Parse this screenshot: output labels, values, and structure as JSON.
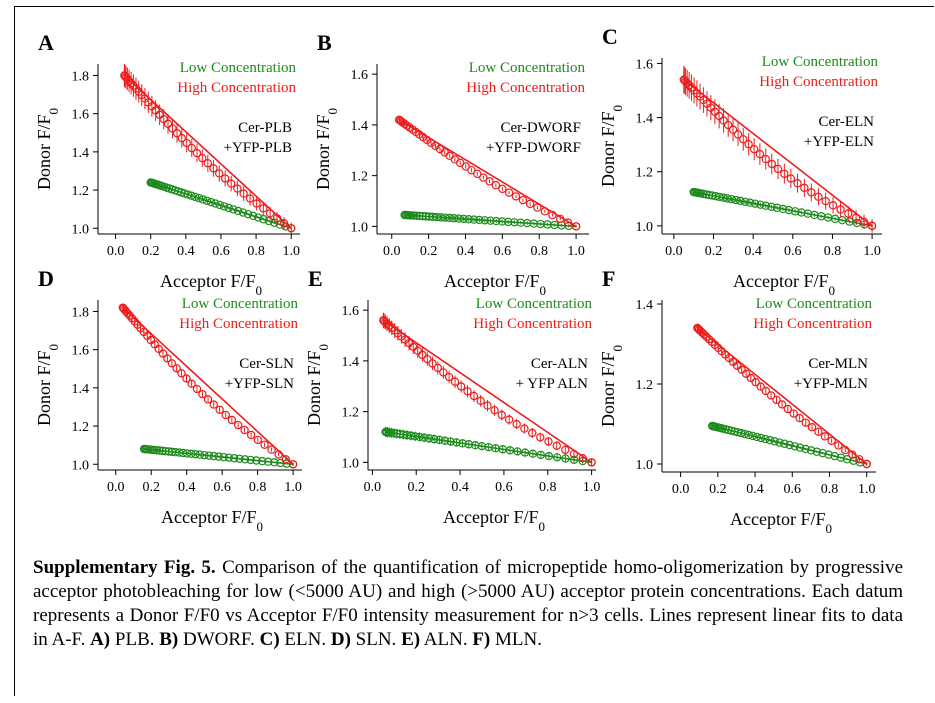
{
  "caption": {
    "label": "Supplementary Fig. 5.",
    "text": "Comparison of the quantification of micropeptide homo-oligomerization by progressive acceptor photobleaching for low (<5000 AU) and high (>5000 AU) acceptor protein concentrations. Each datum represents a Donor F/F0 vs Acceptor F/F0 intensity measurement for n>3 cells. Lines represent linear fits to data in A-F.",
    "parts": [
      {
        "key": "A)",
        "name": "PLB."
      },
      {
        "key": "B)",
        "name": "DWORF."
      },
      {
        "key": "C)",
        "name": "ELN."
      },
      {
        "key": "D)",
        "name": "SLN."
      },
      {
        "key": "E)",
        "name": "ALN."
      },
      {
        "key": "F)",
        "name": "MLN."
      }
    ]
  },
  "colors": {
    "low": "#1e8a1e",
    "high": "#ee1c1c"
  },
  "chart_data": [
    {
      "panel": "A",
      "type": "scatter",
      "xlabel": "Acceptor F/F0",
      "ylabel": "Donor F/F0",
      "xlim": [
        -0.1,
        1.05
      ],
      "ylim": [
        0.97,
        1.86
      ],
      "xticks": [
        "0.0",
        "0.2",
        "0.4",
        "0.6",
        "0.8",
        "1.0"
      ],
      "xtick_values": [
        0,
        0.2,
        0.4,
        0.6,
        0.8,
        1.0
      ],
      "yticks": [
        "1.0",
        "1.2",
        "1.4",
        "1.6",
        "1.8"
      ],
      "ytick_values": [
        1.0,
        1.2,
        1.4,
        1.6,
        1.8
      ],
      "annotation": [
        "Cer-PLB",
        "+YFP-PLB"
      ],
      "series": [
        {
          "name": "Low Concentration",
          "x_start": 0.2,
          "x_end": 1.0,
          "y_start": 1.24,
          "y_end": 1.0,
          "points": 40,
          "err": 0.01,
          "fit_x": [
            0.2,
            1.0
          ]
        },
        {
          "name": "High Concentration",
          "x_start": 0.05,
          "x_end": 1.0,
          "y_start": 1.8,
          "y_end": 1.0,
          "points": 38,
          "err": 0.06,
          "sag": 0.17,
          "fit_x": [
            0.05,
            1.0
          ]
        }
      ]
    },
    {
      "panel": "B",
      "type": "scatter",
      "xlabel": "Acceptor F/F0",
      "ylabel": "Donor F/F0",
      "xlim": [
        -0.08,
        1.07
      ],
      "ylim": [
        0.97,
        1.64
      ],
      "xticks": [
        "0.0",
        "0.2",
        "0.4",
        "0.6",
        "0.8",
        "1.0"
      ],
      "xtick_values": [
        0,
        0.2,
        0.4,
        0.6,
        0.8,
        1.0
      ],
      "yticks": [
        "1.0",
        "1.2",
        "1.4",
        "1.6"
      ],
      "ytick_values": [
        1.0,
        1.2,
        1.4,
        1.6
      ],
      "annotation": [
        "Cer-DWORF",
        "+YFP-DWORF"
      ],
      "series": [
        {
          "name": "Low Concentration",
          "x_start": 0.07,
          "x_end": 1.0,
          "y_start": 1.045,
          "y_end": 1.0,
          "points": 38,
          "err": 0.012,
          "fit_x": [
            0.07,
            1.0
          ]
        },
        {
          "name": "High Concentration",
          "x_start": 0.04,
          "x_end": 1.0,
          "y_start": 1.42,
          "y_end": 1.0,
          "points": 36,
          "err": 0.01,
          "sag": 0.08,
          "fit_x": [
            0.04,
            1.0
          ]
        }
      ]
    },
    {
      "panel": "C",
      "type": "scatter",
      "xlabel": "Acceptor F/F0",
      "ylabel": "Donor F/F0",
      "xlim": [
        -0.06,
        1.05
      ],
      "ylim": [
        0.97,
        1.62
      ],
      "xticks": [
        "0.0",
        "0.2",
        "0.4",
        "0.6",
        "0.8",
        "1.0"
      ],
      "xtick_values": [
        0,
        0.2,
        0.4,
        0.6,
        0.8,
        1.0
      ],
      "yticks": [
        "1.0",
        "1.2",
        "1.4",
        "1.6"
      ],
      "ytick_values": [
        1.0,
        1.2,
        1.4,
        1.6
      ],
      "annotation": [
        "Cer-ELN",
        "+YFP-ELN"
      ],
      "series": [
        {
          "name": "Low Concentration",
          "x_start": 0.1,
          "x_end": 1.0,
          "y_start": 1.125,
          "y_end": 1.0,
          "points": 38,
          "err": 0.01,
          "fit_x": [
            0.1,
            1.0
          ]
        },
        {
          "name": "High Concentration",
          "x_start": 0.05,
          "x_end": 1.0,
          "y_start": 1.54,
          "y_end": 1.0,
          "points": 38,
          "err": 0.05,
          "sag": 0.17,
          "fit_x": [
            0.05,
            1.0
          ]
        }
      ]
    },
    {
      "panel": "D",
      "type": "scatter",
      "xlabel": "Acceptor F/F0",
      "ylabel": "Donor F/F0",
      "xlim": [
        -0.1,
        1.05
      ],
      "ylim": [
        0.97,
        1.86
      ],
      "xticks": [
        "0.0",
        "0.2",
        "0.4",
        "0.6",
        "0.8",
        "1.0"
      ],
      "xtick_values": [
        0,
        0.2,
        0.4,
        0.6,
        0.8,
        1.0
      ],
      "yticks": [
        "1.0",
        "1.2",
        "1.4",
        "1.6",
        "1.8"
      ],
      "ytick_values": [
        1.0,
        1.2,
        1.4,
        1.6,
        1.8
      ],
      "annotation": [
        "Cer-SLN",
        "+YFP-SLN"
      ],
      "series": [
        {
          "name": "Low Concentration",
          "x_start": 0.16,
          "x_end": 1.0,
          "y_start": 1.08,
          "y_end": 1.0,
          "points": 38,
          "err": 0.006,
          "fit_x": [
            0.16,
            1.0
          ]
        },
        {
          "name": "High Concentration",
          "x_start": 0.04,
          "x_end": 1.0,
          "y_start": 1.82,
          "y_end": 1.0,
          "points": 38,
          "err": 0.02,
          "sag": 0.2,
          "fit_x": [
            0.04,
            1.0
          ]
        }
      ]
    },
    {
      "panel": "E",
      "type": "scatter",
      "xlabel": "Acceptor F/F0",
      "ylabel": "Donor F/F0",
      "xlim": [
        -0.02,
        1.02
      ],
      "ylim": [
        0.97,
        1.64
      ],
      "xticks": [
        "0.0",
        "0.2",
        "0.4",
        "0.6",
        "0.8",
        "1.0"
      ],
      "xtick_values": [
        0,
        0.2,
        0.4,
        0.6,
        0.8,
        1.0
      ],
      "yticks": [
        "1.0",
        "1.2",
        "1.4",
        "1.6"
      ],
      "ytick_values": [
        1.0,
        1.2,
        1.4,
        1.6
      ],
      "annotation": [
        "Cer-ALN",
        "+ YFP ALN"
      ],
      "series": [
        {
          "name": "Low Concentration",
          "x_start": 0.06,
          "x_end": 1.0,
          "y_start": 1.12,
          "y_end": 1.0,
          "points": 38,
          "err": 0.02,
          "fit_x": [
            0.06,
            1.0
          ]
        },
        {
          "name": "High Concentration",
          "x_start": 0.05,
          "x_end": 1.0,
          "y_start": 1.56,
          "y_end": 1.0,
          "points": 38,
          "err": 0.03,
          "sag": 0.16,
          "fit_x": [
            0.05,
            1.0
          ]
        }
      ]
    },
    {
      "panel": "F",
      "type": "scatter",
      "xlabel": "Acceptor F/F0",
      "ylabel": "Donor F/F0",
      "xlim": [
        -0.1,
        1.05
      ],
      "ylim": [
        0.98,
        1.41
      ],
      "xticks": [
        "0.0",
        "0.2",
        "0.4",
        "0.6",
        "0.8",
        "1.0"
      ],
      "xtick_values": [
        0,
        0.2,
        0.4,
        0.6,
        0.8,
        1.0
      ],
      "yticks": [
        "1.0",
        "1.2",
        "1.4"
      ],
      "ytick_values": [
        1.0,
        1.2,
        1.4
      ],
      "annotation": [
        "Cer-MLN",
        "+YFP-MLN"
      ],
      "series": [
        {
          "name": "Low Concentration",
          "x_start": 0.17,
          "x_end": 1.0,
          "y_start": 1.095,
          "y_end": 1.0,
          "points": 38,
          "err": 0.004,
          "fit_x": [
            0.17,
            1.0
          ]
        },
        {
          "name": "High Concentration",
          "x_start": 0.09,
          "x_end": 1.0,
          "y_start": 1.34,
          "y_end": 1.0,
          "points": 38,
          "err": 0.01,
          "sag": 0.06,
          "fit_x": [
            0.09,
            1.0
          ]
        }
      ]
    }
  ]
}
